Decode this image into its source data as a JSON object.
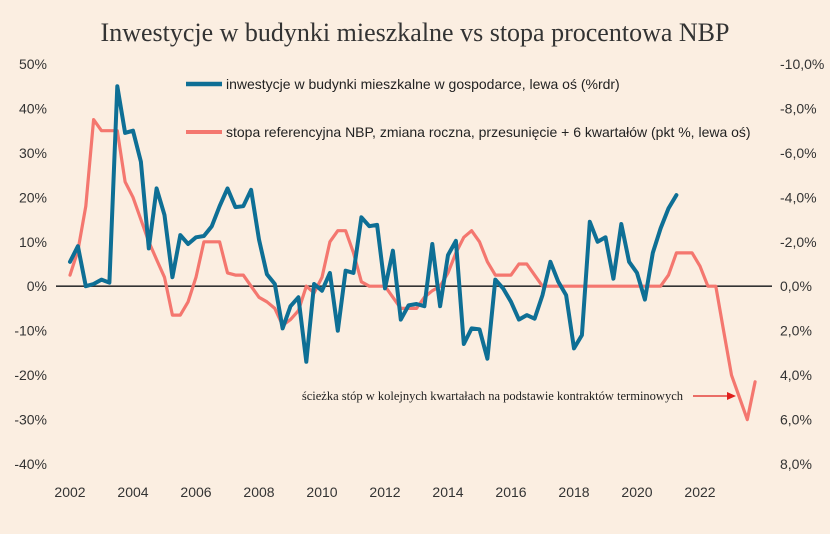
{
  "chart_data": {
    "type": "line",
    "title": "Inwestycje w budynki mieszkalne vs stopa procentowa NBP",
    "xlabel": "",
    "ylabel": "",
    "y2label": "",
    "xlim": [
      2001.7,
      2024.2
    ],
    "ylim": [
      -40,
      50
    ],
    "y2lim": [
      8.0,
      -10.0
    ],
    "y2_inverted": true,
    "x_ticks": [
      2002,
      2004,
      2006,
      2008,
      2010,
      2012,
      2014,
      2016,
      2018,
      2020,
      2022
    ],
    "x_tick_labels": [
      "2002",
      "2004",
      "2006",
      "2008",
      "2010",
      "2012",
      "2014",
      "2016",
      "2018",
      "2020",
      "2022"
    ],
    "y_ticks": [
      50,
      40,
      30,
      20,
      10,
      0,
      -10,
      -20,
      -30,
      -40
    ],
    "y_tick_labels": [
      "50%",
      "40%",
      "30%",
      "20%",
      "10%",
      "0%",
      "-10%",
      "-20%",
      "-30%",
      "-40%"
    ],
    "y2_tick_labels": [
      "-10,0%",
      "-8,0%",
      "-6,0%",
      "-4,0%",
      "-2,0%",
      "0,0%",
      "2,0%",
      "4,0%",
      "6,0%",
      "8,0%"
    ],
    "grid": false,
    "zero_line": true,
    "legend_position": "top-right",
    "series": [
      {
        "name": "inwestycje w budynki mieszkalne w gospodarce, lewa oś (%rdr)",
        "color": "#0e6f95",
        "axis": "left",
        "x": [
          2002.0,
          2002.25,
          2002.5,
          2002.75,
          2003.0,
          2003.25,
          2003.5,
          2003.75,
          2004.0,
          2004.25,
          2004.5,
          2004.75,
          2005.0,
          2005.25,
          2005.5,
          2005.75,
          2006.0,
          2006.25,
          2006.5,
          2006.75,
          2007.0,
          2007.25,
          2007.5,
          2007.75,
          2008.0,
          2008.25,
          2008.5,
          2008.75,
          2009.0,
          2009.25,
          2009.5,
          2009.75,
          2010.0,
          2010.25,
          2010.5,
          2010.75,
          2011.0,
          2011.25,
          2011.5,
          2011.75,
          2012.0,
          2012.25,
          2012.5,
          2012.75,
          2013.0,
          2013.25,
          2013.5,
          2013.75,
          2014.0,
          2014.25,
          2014.5,
          2014.75,
          2015.0,
          2015.25,
          2015.5,
          2015.75,
          2016.0,
          2016.25,
          2016.5,
          2016.75,
          2017.0,
          2017.25,
          2017.5,
          2017.75,
          2018.0,
          2018.25,
          2018.5,
          2018.75,
          2019.0,
          2019.25,
          2019.5,
          2019.75,
          2020.0,
          2020.25,
          2020.5,
          2020.75,
          2021.0,
          2021.25
        ],
        "values": [
          5.5,
          9.0,
          0.0,
          0.5,
          1.5,
          0.8,
          45.0,
          34.5,
          35.0,
          28.0,
          8.5,
          22.0,
          16.0,
          2.0,
          11.5,
          9.5,
          11.0,
          11.3,
          13.5,
          18.0,
          22.0,
          17.8,
          18.0,
          21.7,
          10.5,
          2.7,
          0.5,
          -9.5,
          -4.5,
          -2.5,
          -17.0,
          0.5,
          -1.0,
          3.0,
          -10.0,
          3.5,
          3.0,
          15.5,
          13.5,
          13.8,
          -0.5,
          8.0,
          -7.5,
          -4.3,
          -4.0,
          -4.5,
          9.5,
          -4.5,
          7.0,
          10.2,
          -13.0,
          -9.5,
          -9.7,
          -16.3,
          1.5,
          -0.5,
          -3.5,
          -7.5,
          -6.5,
          -7.3,
          -2.0,
          5.5,
          1.0,
          -2.0,
          -14.0,
          -11.0,
          14.5,
          10.0,
          11.0,
          1.7,
          14.0,
          5.5,
          3.0,
          -3.0,
          7.5,
          13.0,
          17.5,
          20.5
        ]
      },
      {
        "name": "stopa referencyjna NBP, zmiana roczna, przesunięcie + 6 kwartałów (pkt %, lewa oś)",
        "color": "#f4776f",
        "axis": "left",
        "x": [
          2002.0,
          2002.25,
          2002.5,
          2002.75,
          2003.0,
          2003.25,
          2003.5,
          2003.75,
          2004.0,
          2004.25,
          2004.5,
          2004.75,
          2005.0,
          2005.25,
          2005.5,
          2005.75,
          2006.0,
          2006.25,
          2006.5,
          2006.75,
          2007.0,
          2007.25,
          2007.5,
          2007.75,
          2008.0,
          2008.25,
          2008.5,
          2008.75,
          2009.0,
          2009.25,
          2009.5,
          2009.75,
          2010.0,
          2010.25,
          2010.5,
          2010.75,
          2011.0,
          2011.25,
          2011.5,
          2011.75,
          2012.0,
          2012.25,
          2012.5,
          2012.75,
          2013.0,
          2013.25,
          2013.5,
          2013.75,
          2014.0,
          2014.25,
          2014.5,
          2014.75,
          2015.0,
          2015.25,
          2015.5,
          2015.75,
          2016.0,
          2016.25,
          2016.5,
          2016.75,
          2017.0,
          2017.25,
          2017.5,
          2017.75,
          2018.0,
          2018.25,
          2018.5,
          2018.75,
          2019.0,
          2019.25,
          2019.5,
          2019.75,
          2020.0,
          2020.25,
          2020.5,
          2020.75,
          2021.0,
          2021.25,
          2021.5,
          2021.75,
          2022.0,
          2022.25,
          2022.5,
          2022.75,
          2023.0,
          2023.25,
          2023.5,
          2023.75
        ],
        "values": [
          2.5,
          8.0,
          18.0,
          37.5,
          35.0,
          35.0,
          35.0,
          23.5,
          20.0,
          15.0,
          10.0,
          6.0,
          2.0,
          -6.5,
          -6.5,
          -3.5,
          2.0,
          10.0,
          10.0,
          10.0,
          3.0,
          2.5,
          2.5,
          0.0,
          -2.5,
          -3.5,
          -5.0,
          -8.8,
          -7.5,
          -5.5,
          0.0,
          -1.5,
          2.0,
          10.0,
          12.5,
          12.5,
          7.5,
          1.0,
          0.0,
          0.0,
          0.0,
          -2.5,
          -5.0,
          -5.0,
          -5.0,
          -2.5,
          -1.0,
          0.0,
          3.0,
          7.5,
          11.0,
          12.5,
          10.0,
          5.5,
          2.5,
          2.5,
          2.5,
          5.0,
          5.0,
          2.5,
          0.0,
          0.0,
          0.0,
          0.0,
          0.0,
          0.0,
          0.0,
          0.0,
          0.0,
          0.0,
          0.0,
          0.0,
          0.0,
          0.0,
          0.0,
          0.0,
          2.5,
          7.5,
          7.5,
          7.5,
          4.5,
          0.0,
          0.0,
          -10.0,
          -20.0,
          -25.0,
          -30.0,
          -21.5
        ]
      }
    ],
    "annotations": [
      {
        "text": "ścieżka stóp w kolejnych kwartałach na podstawie kontraktów terminowych",
        "arrow_color": "#e0201d"
      }
    ]
  }
}
